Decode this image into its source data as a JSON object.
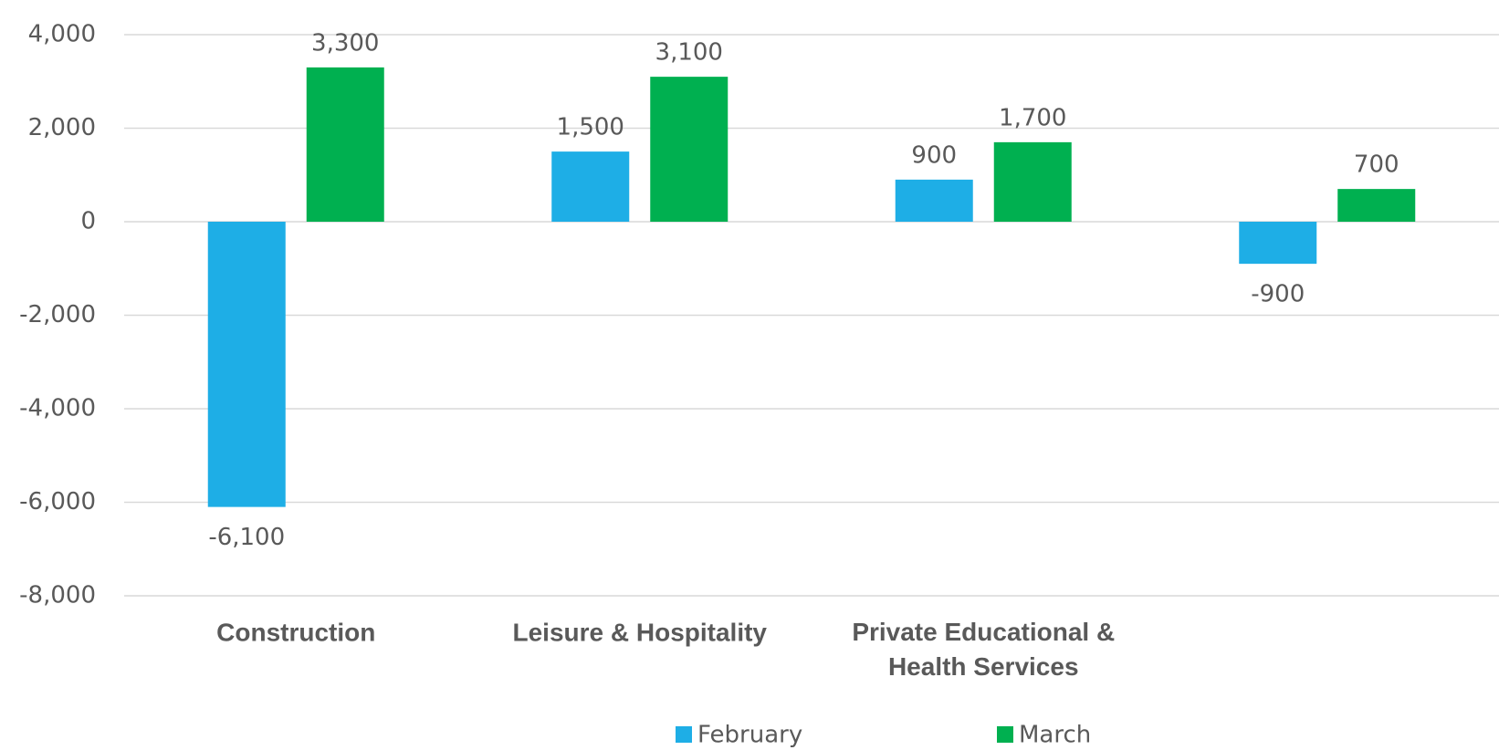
{
  "chart_data": {
    "type": "bar",
    "categories": [
      "Construction",
      "Leisure & Hospitality",
      "Private Educational & Health Services",
      null
    ],
    "series": [
      {
        "name": "February",
        "color": "#1eaee6",
        "values": [
          -6100,
          1500,
          900,
          -900
        ],
        "value_labels": [
          "-6,100",
          "1,500",
          "900",
          "-900"
        ]
      },
      {
        "name": "March",
        "color": "#00b050",
        "values": [
          3300,
          3100,
          1700,
          700
        ],
        "value_labels": [
          "3,300",
          "3,100",
          "1,700",
          "700"
        ]
      }
    ],
    "ylim": [
      -8000,
      4000
    ],
    "yticks": [
      {
        "value": -8000,
        "label": "-8,000"
      },
      {
        "value": -6000,
        "label": "-6,000"
      },
      {
        "value": -4000,
        "label": "-4,000"
      },
      {
        "value": -2000,
        "label": "-2,000"
      },
      0,
      {
        "value": 2000,
        "label": "2,000"
      },
      {
        "value": 4000,
        "label": "4,000"
      }
    ],
    "grid": true,
    "legend": "bottom"
  }
}
